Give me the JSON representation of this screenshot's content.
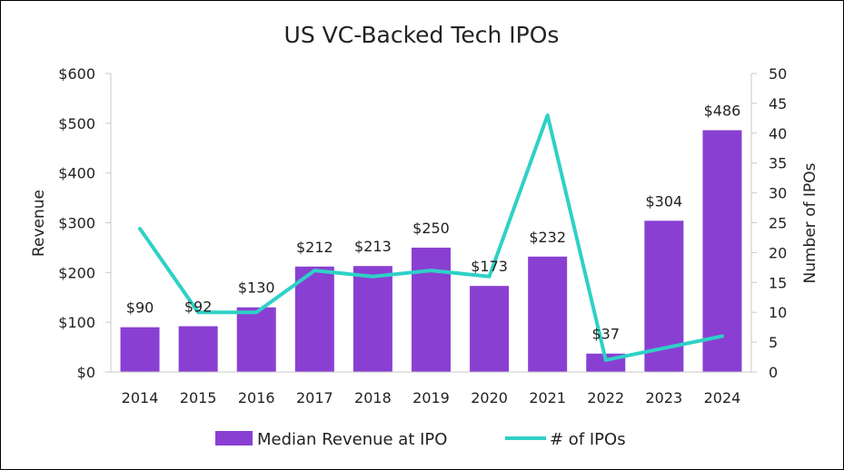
{
  "chart_data": {
    "type": "bar",
    "title": "US VC-Backed Tech IPOs",
    "categories": [
      "2014",
      "2015",
      "2016",
      "2017",
      "2018",
      "2019",
      "2020",
      "2021",
      "2022",
      "2023",
      "2024"
    ],
    "series": [
      {
        "name": "Median Revenue at IPO",
        "type": "bar",
        "axis": "left",
        "values": [
          90,
          92,
          130,
          212,
          213,
          250,
          173,
          232,
          37,
          304,
          486
        ],
        "labels": [
          "$90",
          "$92",
          "$130",
          "$212",
          "$213",
          "$250",
          "$173",
          "$232",
          "$37",
          "$304",
          "$486"
        ]
      },
      {
        "name": "# of IPOs",
        "type": "line",
        "axis": "right",
        "values": [
          24,
          10,
          10,
          17,
          16,
          17,
          16,
          43,
          2,
          4,
          6
        ]
      }
    ],
    "ylabel": "Revenue",
    "ylim": [
      0,
      600
    ],
    "yticks": [
      "$0",
      "$100",
      "$200",
      "$300",
      "$400",
      "$500",
      "$600"
    ],
    "y2label": "Number of IPOs",
    "y2lim": [
      0,
      50
    ],
    "y2ticks": [
      "0",
      "5",
      "10",
      "15",
      "20",
      "25",
      "30",
      "35",
      "40",
      "45",
      "50"
    ],
    "legend_position": "bottom",
    "grid": false,
    "colors": {
      "bar": "#8a3fd3",
      "line": "#2ed1c6",
      "axis": "#c9c9c9"
    }
  }
}
